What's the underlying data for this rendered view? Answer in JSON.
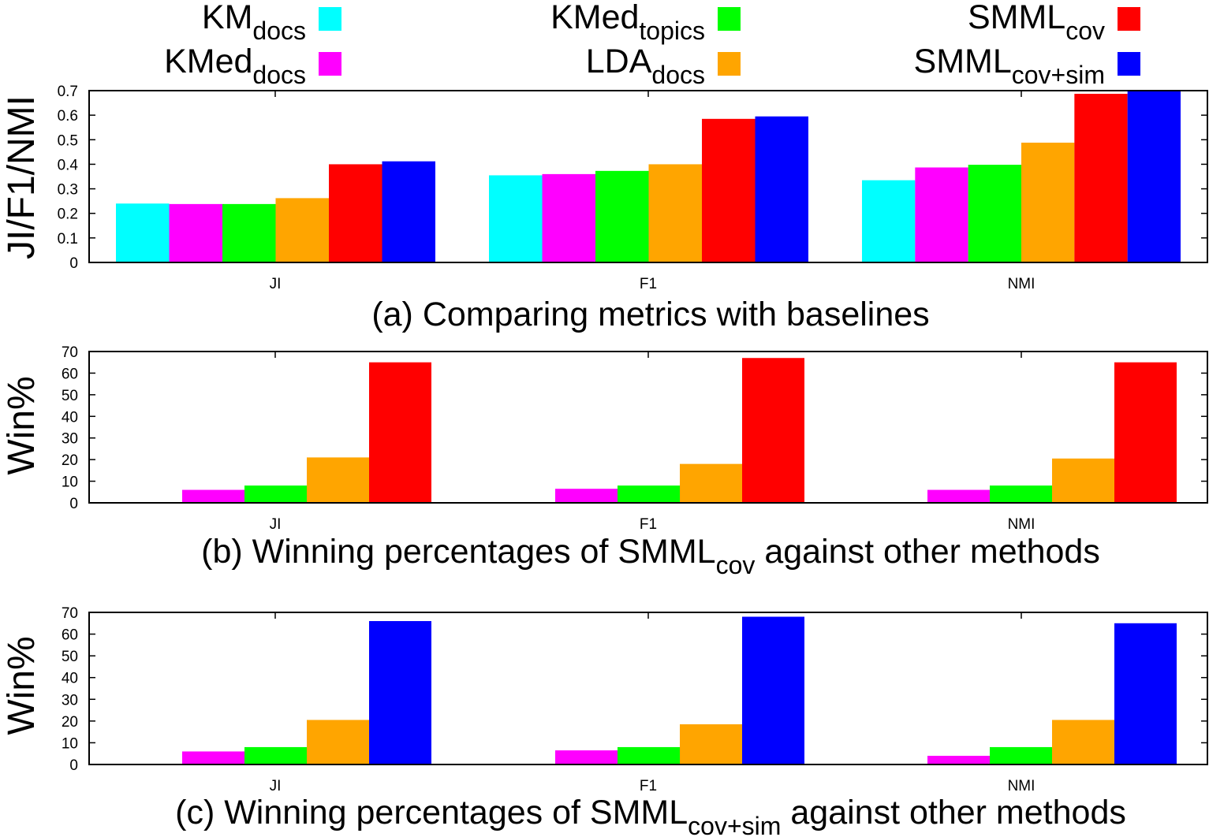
{
  "legend": [
    {
      "base": "KM",
      "sub": "docs",
      "color": "#00ffff"
    },
    {
      "base": "KMed",
      "sub": "docs",
      "color": "#ff00ff"
    },
    {
      "base": "KMed",
      "sub": "topics",
      "color": "#00ff00"
    },
    {
      "base": "LDA",
      "sub": "docs",
      "color": "#ffa500"
    },
    {
      "base": "SMML",
      "sub": "cov",
      "color": "#ff0000"
    },
    {
      "base": "SMML",
      "sub": "cov+sim",
      "color": "#0000ff"
    }
  ],
  "chart_data": [
    {
      "type": "bar",
      "ylabel": "JI/F1/NMI",
      "caption": "(a) Comparing metrics with baselines",
      "categories": [
        "JI",
        "F1",
        "NMI"
      ],
      "ylim": [
        0,
        0.7
      ],
      "yticks": [
        "0",
        "0.1",
        "0.2",
        "0.3",
        "0.4",
        "0.5",
        "0.6",
        "0.7"
      ],
      "series": [
        {
          "name": "KMdocs",
          "values": [
            0.24,
            0.355,
            0.335
          ]
        },
        {
          "name": "KMeddocs",
          "values": [
            0.238,
            0.36,
            0.387
          ]
        },
        {
          "name": "KMedtopics",
          "values": [
            0.238,
            0.373,
            0.398
          ]
        },
        {
          "name": "LDAdocs",
          "values": [
            0.262,
            0.4,
            0.488
          ]
        },
        {
          "name": "SMMLcov",
          "values": [
            0.4,
            0.585,
            0.687
          ]
        },
        {
          "name": "SMMLcov+sim",
          "values": [
            0.412,
            0.595,
            0.697
          ]
        }
      ]
    },
    {
      "type": "bar",
      "ylabel": "Win%",
      "caption_pre": "(b) Winning percentages of SMML",
      "caption_sub": "cov",
      "caption_post": " against other methods",
      "categories": [
        "JI",
        "F1",
        "NMI"
      ],
      "ylim": [
        0,
        70
      ],
      "yticks": [
        "0",
        "10",
        "20",
        "30",
        "40",
        "50",
        "60",
        "70"
      ],
      "series": [
        {
          "name": "KMdocs",
          "values": [
            0,
            0,
            0
          ]
        },
        {
          "name": "KMeddocs",
          "values": [
            6,
            6.5,
            6
          ]
        },
        {
          "name": "KMedtopics",
          "values": [
            8,
            8,
            8
          ]
        },
        {
          "name": "LDAdocs",
          "values": [
            21,
            18,
            20.5
          ]
        },
        {
          "name": "SMMLcov",
          "values": [
            65,
            67,
            65
          ]
        }
      ]
    },
    {
      "type": "bar",
      "ylabel": "Win%",
      "caption_pre": "(c) Winning percentages of SMML",
      "caption_sub": "cov+sim",
      "caption_post": " against other methods",
      "categories": [
        "JI",
        "F1",
        "NMI"
      ],
      "ylim": [
        0,
        70
      ],
      "yticks": [
        "0",
        "10",
        "20",
        "30",
        "40",
        "50",
        "60",
        "70"
      ],
      "series": [
        {
          "name": "KMdocs",
          "values": [
            0,
            0,
            0
          ]
        },
        {
          "name": "KMeddocs",
          "values": [
            6,
            6.5,
            4
          ]
        },
        {
          "name": "KMedtopics",
          "values": [
            8,
            8,
            8
          ]
        },
        {
          "name": "LDAdocs",
          "values": [
            20.5,
            18.5,
            20.5
          ]
        },
        {
          "name": "SMMLcov+sim",
          "values": [
            66,
            68,
            65
          ]
        }
      ]
    }
  ]
}
